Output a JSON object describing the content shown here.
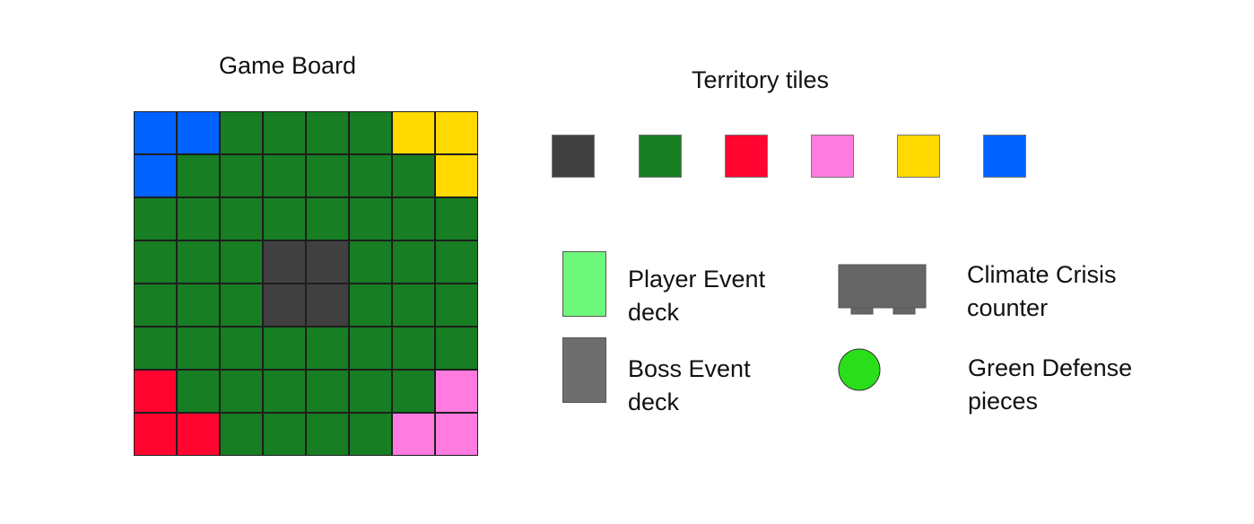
{
  "colors": {
    "black": "#404040",
    "green": "#177e23",
    "red": "#ff0530",
    "pink": "#ff7be0",
    "yellow": "#ffd900",
    "blue": "#0062ff",
    "player_deck": "#6ef87a",
    "boss_deck": "#6e6e6e",
    "counter": "#666666",
    "defense": "#2bde1a"
  },
  "board": {
    "title": "Game Board",
    "rows": [
      [
        "blue",
        "blue",
        "green",
        "green",
        "green",
        "green",
        "yellow",
        "yellow"
      ],
      [
        "blue",
        "green",
        "green",
        "green",
        "green",
        "green",
        "green",
        "yellow"
      ],
      [
        "green",
        "green",
        "green",
        "green",
        "green",
        "green",
        "green",
        "green"
      ],
      [
        "green",
        "green",
        "green",
        "black",
        "black",
        "green",
        "green",
        "green"
      ],
      [
        "green",
        "green",
        "green",
        "black",
        "black",
        "green",
        "green",
        "green"
      ],
      [
        "green",
        "green",
        "green",
        "green",
        "green",
        "green",
        "green",
        "green"
      ],
      [
        "red",
        "green",
        "green",
        "green",
        "green",
        "green",
        "green",
        "pink"
      ],
      [
        "red",
        "red",
        "green",
        "green",
        "green",
        "green",
        "pink",
        "pink"
      ]
    ]
  },
  "territory": {
    "title": "Territory tiles",
    "tiles": [
      "black",
      "green",
      "red",
      "pink",
      "yellow",
      "blue"
    ]
  },
  "legend": {
    "player_event_line1": "Player Event",
    "player_event_line2": "deck",
    "boss_event_line1": "Boss Event",
    "boss_event_line2": "deck",
    "climate_line1": "Climate Crisis",
    "climate_line2": "counter",
    "defense_line1": "Green Defense",
    "defense_line2": "pieces"
  }
}
